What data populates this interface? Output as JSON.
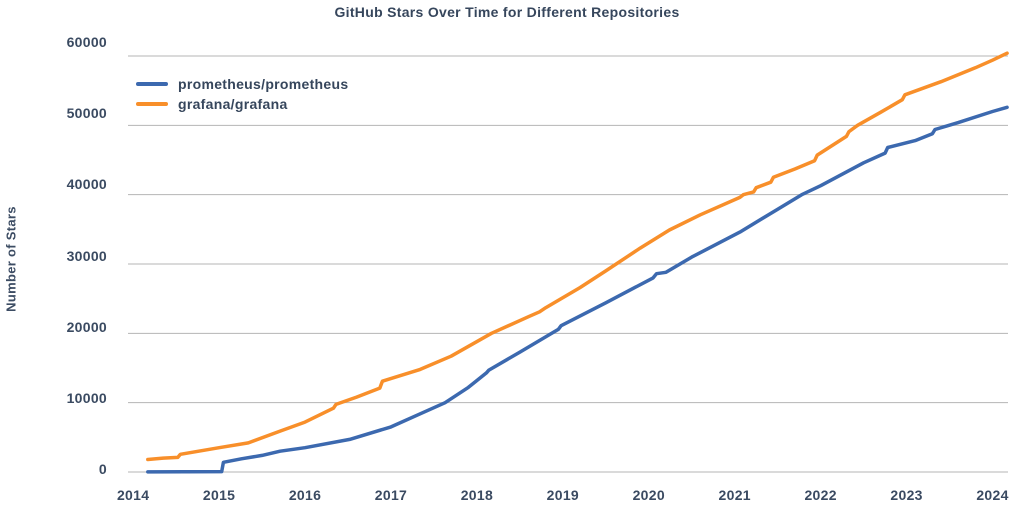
{
  "chart_data": {
    "type": "line",
    "title": "GitHub Stars Over Time for Different Repositories",
    "xlabel": "",
    "ylabel": "Number of Stars",
    "xlim": [
      2013.94,
      2024.18
    ],
    "ylim": [
      0,
      60000
    ],
    "xticks": [
      "2014",
      "2015",
      "2016",
      "2017",
      "2018",
      "2019",
      "2020",
      "2021",
      "2022",
      "2023",
      "2024"
    ],
    "yticks": [
      "0",
      "10000",
      "20000",
      "30000",
      "40000",
      "50000",
      "60000"
    ],
    "ytick_values": [
      0,
      10000,
      20000,
      30000,
      40000,
      50000,
      60000
    ],
    "xtick_values": [
      2014,
      2015,
      2016,
      2017,
      2018,
      2019,
      2020,
      2021,
      2022,
      2023,
      2024
    ],
    "grid": "horizontal",
    "legend_position": "upper-left-inside",
    "grid_color": "#b5b5b5",
    "text_color": "#3a4a61",
    "series": [
      {
        "name": "prometheus/prometheus",
        "color": "#3c69af",
        "points": [
          [
            2014.17,
            20
          ],
          [
            2014.6,
            40
          ],
          [
            2015.03,
            60
          ],
          [
            2015.05,
            1400
          ],
          [
            2015.26,
            1900
          ],
          [
            2015.5,
            2400
          ],
          [
            2015.71,
            3000
          ],
          [
            2016.0,
            3500
          ],
          [
            2016.52,
            4700
          ],
          [
            2017.0,
            6500
          ],
          [
            2017.34,
            8400
          ],
          [
            2017.63,
            10000
          ],
          [
            2017.9,
            12200
          ],
          [
            2018.11,
            14300
          ],
          [
            2018.14,
            14700
          ],
          [
            2018.5,
            17300
          ],
          [
            2018.95,
            20600
          ],
          [
            2018.98,
            21100
          ],
          [
            2019.5,
            24400
          ],
          [
            2020.05,
            28000
          ],
          [
            2020.09,
            28600
          ],
          [
            2020.2,
            28800
          ],
          [
            2020.5,
            31000
          ],
          [
            2021.06,
            34600
          ],
          [
            2021.5,
            37900
          ],
          [
            2021.78,
            40000
          ],
          [
            2022.0,
            41300
          ],
          [
            2022.5,
            44600
          ],
          [
            2022.75,
            46000
          ],
          [
            2022.78,
            46800
          ],
          [
            2023.1,
            47800
          ],
          [
            2023.3,
            48800
          ],
          [
            2023.33,
            49400
          ],
          [
            2023.6,
            50400
          ],
          [
            2024.0,
            52000
          ],
          [
            2024.17,
            52600
          ]
        ]
      },
      {
        "name": "grafana/grafana",
        "color": "#f88f2a",
        "points": [
          [
            2014.17,
            1800
          ],
          [
            2014.35,
            2000
          ],
          [
            2014.52,
            2100
          ],
          [
            2014.55,
            2550
          ],
          [
            2015.0,
            3500
          ],
          [
            2015.34,
            4200
          ],
          [
            2015.71,
            5900
          ],
          [
            2016.0,
            7200
          ],
          [
            2016.33,
            9200
          ],
          [
            2016.36,
            9750
          ],
          [
            2016.6,
            10800
          ],
          [
            2016.87,
            12100
          ],
          [
            2016.9,
            13100
          ],
          [
            2017.34,
            14800
          ],
          [
            2017.7,
            16700
          ],
          [
            2018.17,
            20000
          ],
          [
            2018.6,
            22400
          ],
          [
            2018.73,
            23100
          ],
          [
            2018.8,
            23700
          ],
          [
            2019.2,
            26600
          ],
          [
            2019.5,
            29000
          ],
          [
            2019.9,
            32300
          ],
          [
            2020.24,
            34900
          ],
          [
            2020.6,
            37100
          ],
          [
            2021.06,
            39600
          ],
          [
            2021.1,
            40000
          ],
          [
            2021.22,
            40400
          ],
          [
            2021.25,
            41000
          ],
          [
            2021.42,
            41800
          ],
          [
            2021.45,
            42500
          ],
          [
            2021.7,
            43700
          ],
          [
            2021.93,
            44900
          ],
          [
            2021.96,
            45700
          ],
          [
            2022.3,
            48400
          ],
          [
            2022.33,
            49100
          ],
          [
            2022.43,
            50000
          ],
          [
            2022.7,
            51900
          ],
          [
            2022.95,
            53700
          ],
          [
            2022.98,
            54400
          ],
          [
            2023.4,
            56300
          ],
          [
            2023.8,
            58300
          ],
          [
            2024.0,
            59400
          ],
          [
            2024.17,
            60400
          ]
        ]
      }
    ]
  }
}
